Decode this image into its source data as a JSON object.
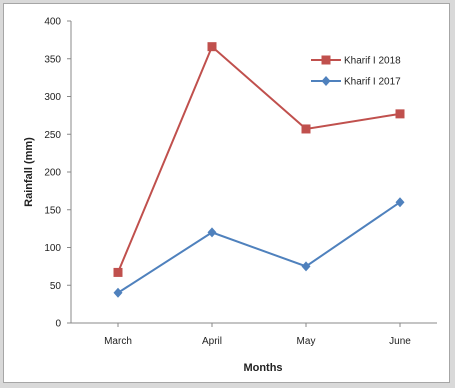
{
  "chart_data": {
    "type": "line",
    "categories": [
      "March",
      "April",
      "May",
      "June"
    ],
    "series": [
      {
        "name": "Kharif I 2018",
        "color": "#c0504d",
        "marker": "square",
        "values": [
          67,
          366,
          257,
          277
        ]
      },
      {
        "name": "Kharif I 2017",
        "color": "#4f81bd",
        "marker": "diamond",
        "values": [
          40,
          120,
          75,
          160
        ]
      }
    ],
    "xlabel": "Months",
    "ylabel": "Rainfall (mm)",
    "ylim": [
      0,
      400
    ],
    "yticks": [
      0,
      50,
      100,
      150,
      200,
      250,
      300,
      350,
      400
    ],
    "grid": false,
    "legend": "top-right"
  }
}
